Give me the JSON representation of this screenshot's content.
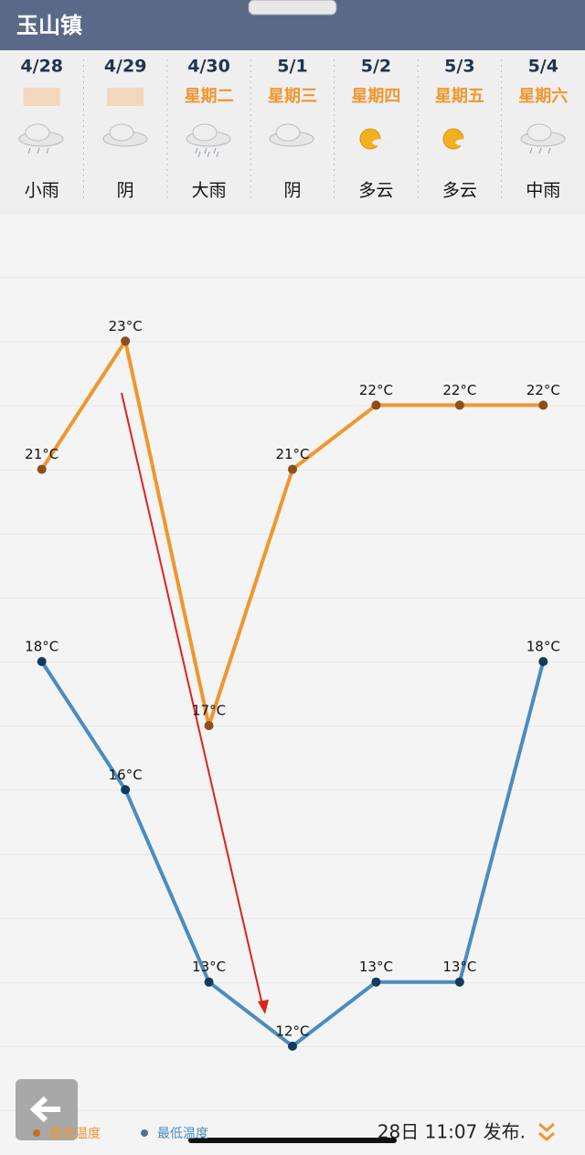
{
  "header": {
    "title": "玉山镇"
  },
  "days": {
    "dates": [
      "4/28",
      "4/29",
      "4/30",
      "5/1",
      "5/2",
      "5/3",
      "5/4"
    ],
    "weekdays": [
      null,
      null,
      "星期二",
      "星期三",
      "星期四",
      "星期五",
      "星期六"
    ],
    "conditions": [
      "小雨",
      "阴",
      "大雨",
      "阴",
      "多云",
      "多云",
      "中雨"
    ]
  },
  "chart_data": {
    "type": "line",
    "ylim": [
      11,
      25
    ],
    "series": [
      {
        "name": "最高温度",
        "color": "#f0962e",
        "values": [
          21,
          23,
          17,
          21,
          22,
          22,
          22
        ],
        "value_labels": [
          "21°C",
          "23°C",
          "17°C",
          "21°C",
          "22°C",
          "22°C",
          "22°C"
        ]
      },
      {
        "name": "最低温度",
        "color": "#4a8cc0",
        "values": [
          18,
          16,
          13,
          12,
          13,
          13,
          18
        ],
        "value_labels": [
          "18°C",
          "16°C",
          "13°C",
          "12°C",
          "13°C",
          "13°C",
          "18°C"
        ]
      }
    ]
  },
  "footer": {
    "published": "28日 11:07 发布."
  }
}
